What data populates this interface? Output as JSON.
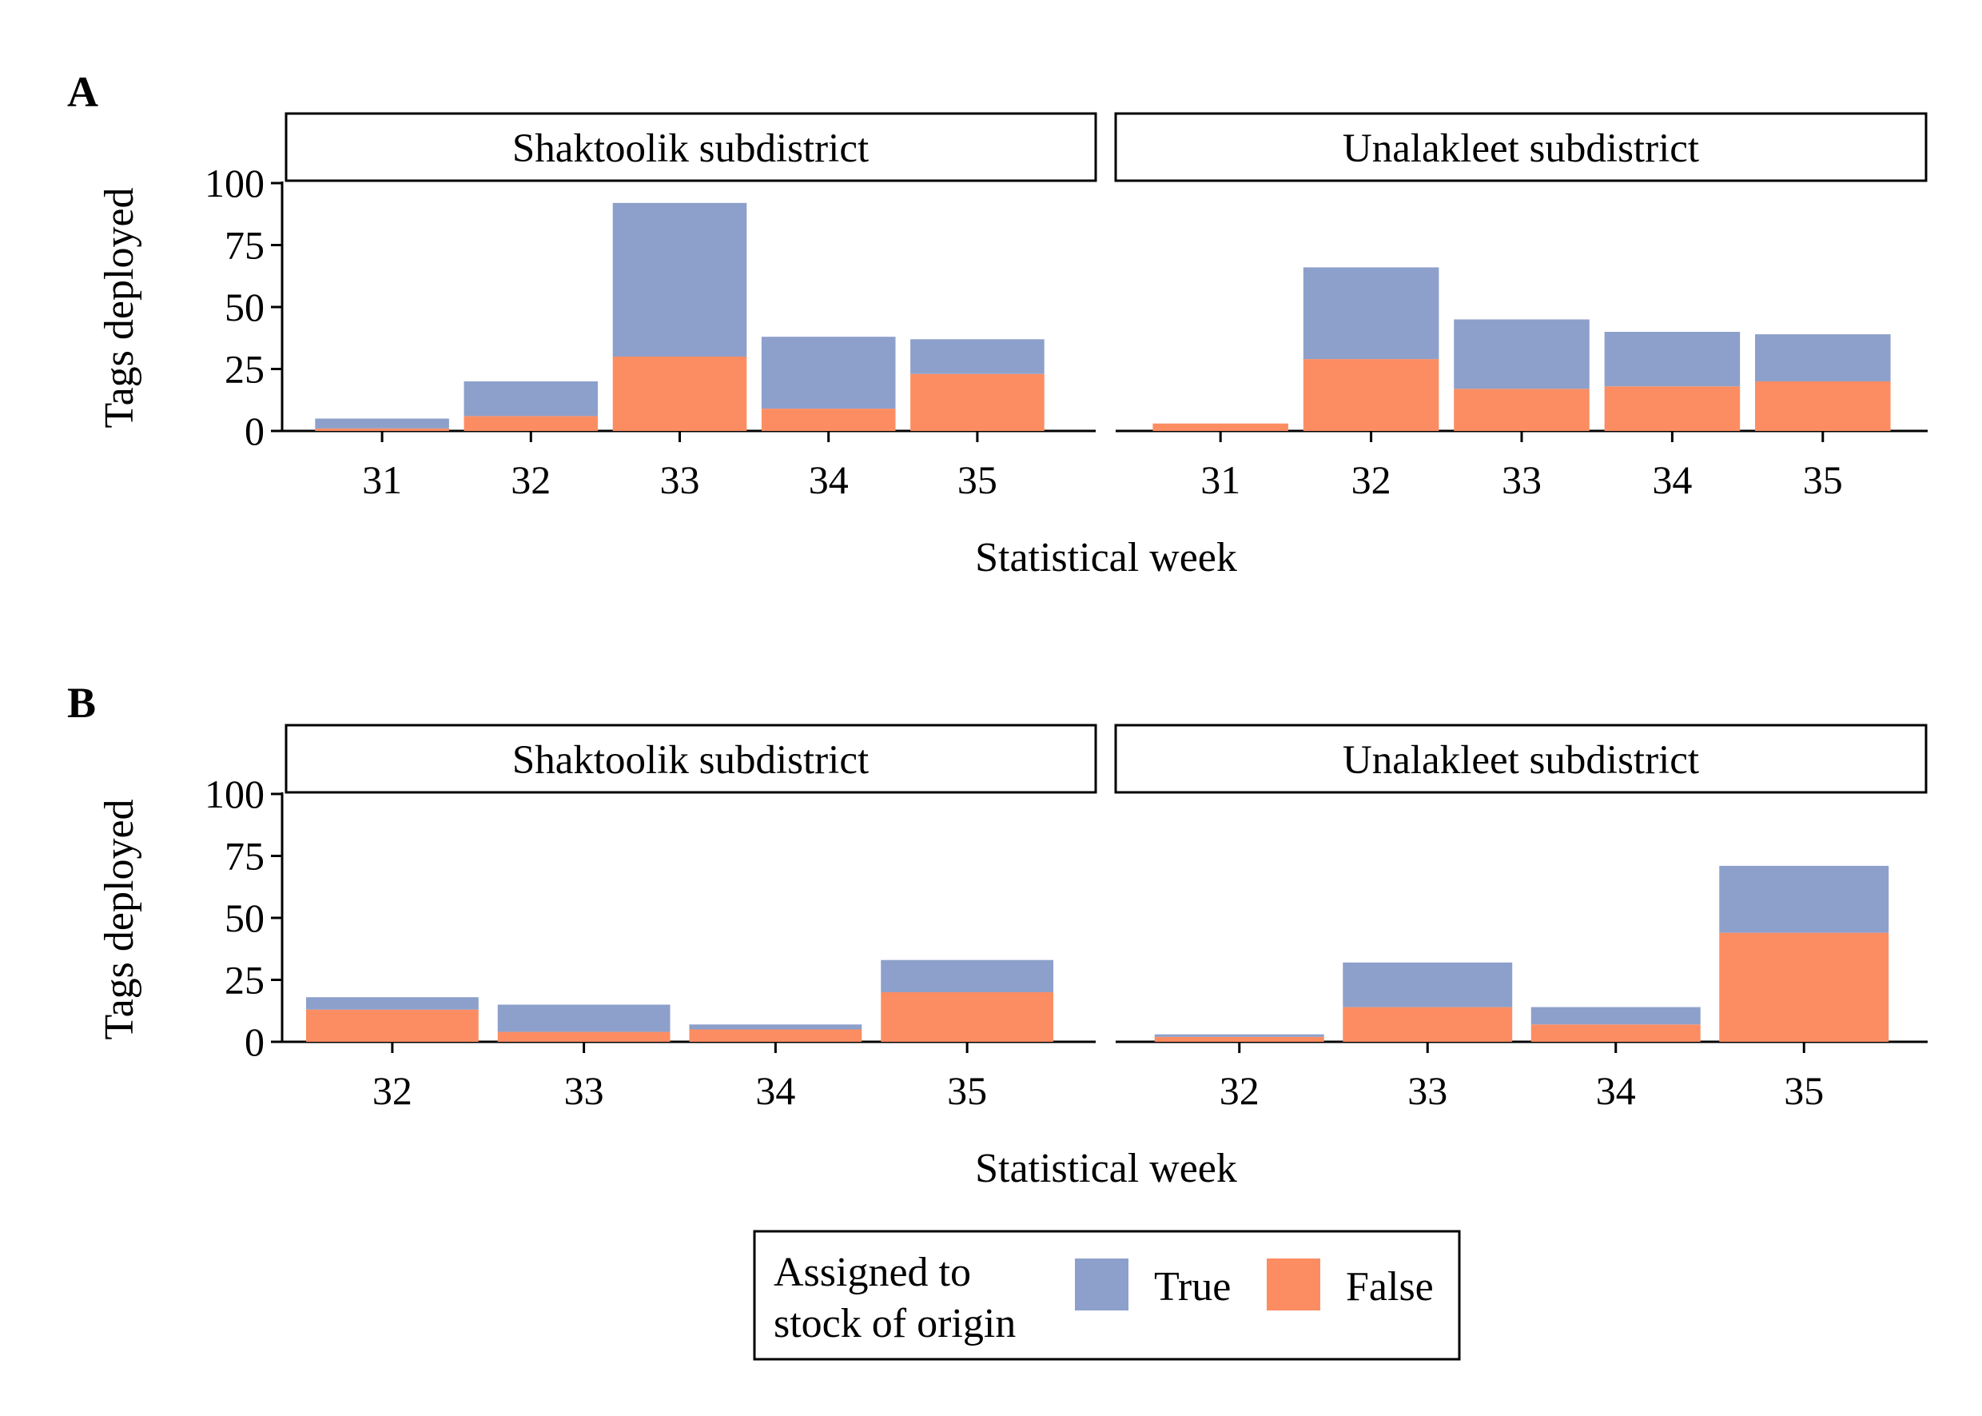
{
  "legend": {
    "title_line1": "Assigned to",
    "title_line2": "stock of origin",
    "entries": [
      {
        "label": "True",
        "color": "#8DA0CB"
      },
      {
        "label": "False",
        "color": "#FC8D62"
      }
    ]
  },
  "chart_data": [
    {
      "type": "bar",
      "stacked": true,
      "panel_label": "A",
      "xlabel": "Statistical week",
      "ylabel": "Tags deployed",
      "ylim": [
        0,
        125
      ],
      "yticks": [
        0,
        25,
        50,
        75,
        100
      ],
      "facets": [
        {
          "title": "Shaktoolik subdistrict",
          "categories": [
            "31",
            "32",
            "33",
            "34",
            "35"
          ],
          "series": [
            {
              "name": "False",
              "values": [
                1,
                6,
                30,
                9,
                23
              ]
            },
            {
              "name": "True",
              "values": [
                4,
                14,
                62,
                29,
                14
              ]
            }
          ]
        },
        {
          "title": "Unalakleet subdistrict",
          "categories": [
            "31",
            "32",
            "33",
            "34",
            "35"
          ],
          "series": [
            {
              "name": "False",
              "values": [
                3,
                29,
                17,
                18,
                20
              ]
            },
            {
              "name": "True",
              "values": [
                0,
                37,
                28,
                22,
                19
              ]
            }
          ]
        }
      ]
    },
    {
      "type": "bar",
      "stacked": true,
      "panel_label": "B",
      "xlabel": "Statistical week",
      "ylabel": "Tags deployed",
      "ylim": [
        0,
        125
      ],
      "yticks": [
        0,
        25,
        50,
        75,
        100
      ],
      "facets": [
        {
          "title": "Shaktoolik subdistrict",
          "categories": [
            "32",
            "33",
            "34",
            "35"
          ],
          "series": [
            {
              "name": "False",
              "values": [
                13,
                4,
                5,
                20
              ]
            },
            {
              "name": "True",
              "values": [
                5,
                11,
                2,
                13
              ]
            }
          ]
        },
        {
          "title": "Unalakleet subdistrict",
          "categories": [
            "32",
            "33",
            "34",
            "35"
          ],
          "series": [
            {
              "name": "False",
              "values": [
                2,
                14,
                7,
                44
              ]
            },
            {
              "name": "True",
              "values": [
                1,
                18,
                7,
                27
              ]
            }
          ]
        }
      ]
    }
  ]
}
